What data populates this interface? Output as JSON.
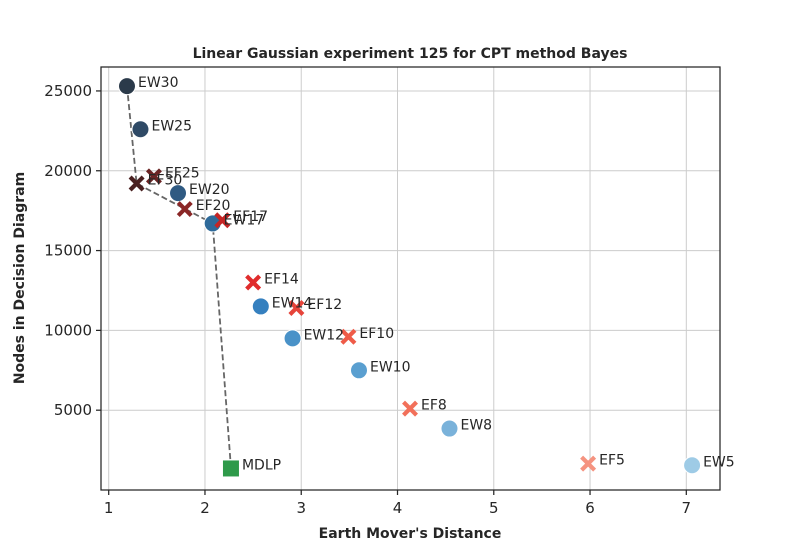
{
  "chart_data": {
    "type": "scatter",
    "title": "Linear Gaussian experiment 125 for CPT method Bayes",
    "xlabel": "Earth Mover's Distance",
    "ylabel": "Nodes in Decision Diagram",
    "xlim": [
      0.92,
      7.35
    ],
    "ylim": [
      0,
      26500
    ],
    "xticks": [
      1,
      2,
      3,
      4,
      5,
      6,
      7
    ],
    "yticks": [
      5000,
      10000,
      15000,
      20000,
      25000
    ],
    "grid": true,
    "points": [
      {
        "label": "EW30",
        "x": 1.19,
        "y": 25300,
        "marker": "circle",
        "color": "#2b3a4a"
      },
      {
        "label": "EW25",
        "x": 1.33,
        "y": 22600,
        "marker": "circle",
        "color": "#2f4a66"
      },
      {
        "label": "EW20",
        "x": 1.72,
        "y": 18600,
        "marker": "circle",
        "color": "#2f5a82"
      },
      {
        "label": "EW17",
        "x": 2.08,
        "y": 16700,
        "marker": "circle",
        "color": "#2e6a9a"
      },
      {
        "label": "EW14",
        "x": 2.58,
        "y": 11500,
        "marker": "circle",
        "color": "#3580bf"
      },
      {
        "label": "EW12",
        "x": 2.91,
        "y": 9500,
        "marker": "circle",
        "color": "#4a92c8"
      },
      {
        "label": "EW10",
        "x": 3.6,
        "y": 7500,
        "marker": "circle",
        "color": "#5a9fd0"
      },
      {
        "label": "EW8",
        "x": 4.54,
        "y": 3850,
        "marker": "circle",
        "color": "#7ab2da"
      },
      {
        "label": "EW5",
        "x": 7.06,
        "y": 1550,
        "marker": "circle",
        "color": "#9ecbe6"
      },
      {
        "label": "EF30",
        "x": 1.29,
        "y": 19200,
        "marker": "x",
        "color": "#4a2020"
      },
      {
        "label": "EF25",
        "x": 1.47,
        "y": 19650,
        "marker": "x",
        "color": "#6a2424"
      },
      {
        "label": "EF20",
        "x": 1.79,
        "y": 17600,
        "marker": "x",
        "color": "#8a2626"
      },
      {
        "label": "EF17",
        "x": 2.18,
        "y": 16900,
        "marker": "x",
        "color": "#c42525"
      },
      {
        "label": "EF14",
        "x": 2.5,
        "y": 13000,
        "marker": "x",
        "color": "#e02c2c"
      },
      {
        "label": "EF12",
        "x": 2.95,
        "y": 11400,
        "marker": "x",
        "color": "#e6443a"
      },
      {
        "label": "EF10",
        "x": 3.49,
        "y": 9600,
        "marker": "x",
        "color": "#ef5b48"
      },
      {
        "label": "EF8",
        "x": 4.13,
        "y": 5100,
        "marker": "x",
        "color": "#f2705a"
      },
      {
        "label": "EF5",
        "x": 5.98,
        "y": 1650,
        "marker": "x",
        "color": "#f59380"
      },
      {
        "label": "MDLP",
        "x": 2.27,
        "y": 1350,
        "marker": "square",
        "color": "#2e9a4a"
      }
    ],
    "frontier": [
      {
        "x": 1.19,
        "y": 25300
      },
      {
        "x": 1.29,
        "y": 19200
      },
      {
        "x": 2.08,
        "y": 16700
      },
      {
        "x": 2.27,
        "y": 1350
      }
    ]
  }
}
